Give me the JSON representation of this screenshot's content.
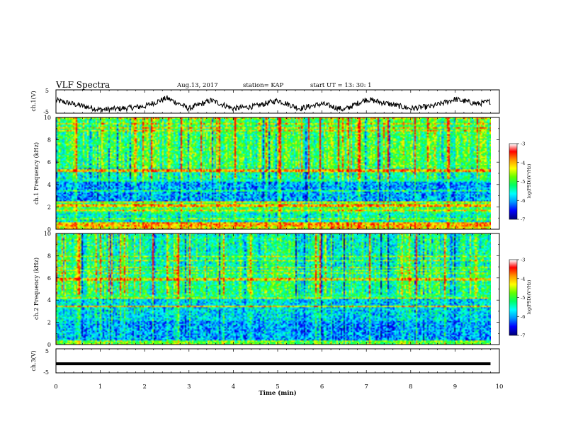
{
  "header": {
    "title": "VLF Spectra",
    "date": "Aug.13, 2017",
    "station": "station= KAP",
    "start": "start  UT =  13: 30: 1"
  },
  "colors": {
    "trace": "#000000",
    "colormap": [
      "#00007a",
      "#0000ff",
      "#0096ff",
      "#00ffff",
      "#00ff64",
      "#64ff00",
      "#ffff00",
      "#ff9600",
      "#ff0000",
      "#ffffff"
    ]
  },
  "chart_data": [
    {
      "type": "line",
      "name": "ch1_waveform",
      "ylabel": "ch.1(V)",
      "ylim": [
        -5,
        5
      ],
      "yticks": [
        "5",
        "-5"
      ],
      "xlim": [
        0,
        10
      ],
      "x_unit": "min",
      "note_data": "noisy trace, approx baseline -2 V to 3 V",
      "x": [
        0,
        0.5,
        1,
        1.5,
        2,
        2.5,
        3,
        3.5,
        4,
        4.5,
        5,
        5.5,
        6,
        6.5,
        7,
        7.5,
        8,
        8.5,
        9,
        9.5,
        9.8
      ],
      "values": [
        0.5,
        -1.5,
        -3.5,
        -3,
        -2,
        1.5,
        -3,
        0.5,
        -3,
        -2,
        0.5,
        -3,
        -1,
        -3.5,
        1,
        -1,
        -3,
        -2,
        1,
        -1,
        0
      ]
    },
    {
      "type": "heatmap",
      "name": "ch1_spectrogram",
      "ylabel": "ch.1 Frequency  (kHz)",
      "ylim": [
        0,
        10
      ],
      "yticks": [
        "0",
        "2",
        "4",
        "6",
        "8",
        "10"
      ],
      "xlim": [
        0,
        10
      ],
      "colorbar": {
        "label": "log(PSD)(V²/Hz)",
        "range": [
          -7,
          -3
        ],
        "ticks": [
          "-3",
          "-4",
          "-5",
          "-6",
          "-7"
        ]
      }
    },
    {
      "type": "heatmap",
      "name": "ch2_spectrogram",
      "ylabel": "ch.2 Frequency  (kHz)",
      "ylim": [
        0,
        10
      ],
      "yticks": [
        "0",
        "2",
        "4",
        "6",
        "8",
        "10"
      ],
      "xlim": [
        0,
        10
      ],
      "colorbar": {
        "label": "log(PSD)(V²/Hz)",
        "range": [
          -7,
          -3
        ],
        "ticks": [
          "-3",
          "-4",
          "-5",
          "-6",
          "-7"
        ]
      }
    },
    {
      "type": "line",
      "name": "ch3_waveform",
      "ylabel": "ch.3(V)",
      "ylim": [
        -5,
        5
      ],
      "yticks": [
        "5",
        "-5"
      ],
      "xlim": [
        0,
        10
      ],
      "xlabel": "Time  (min)",
      "xticks": [
        "0",
        "1",
        "2",
        "3",
        "4",
        "5",
        "6",
        "7",
        "8",
        "9",
        "10"
      ],
      "x": [
        0,
        9.8
      ],
      "values": [
        -1.2,
        -1.2
      ]
    }
  ]
}
